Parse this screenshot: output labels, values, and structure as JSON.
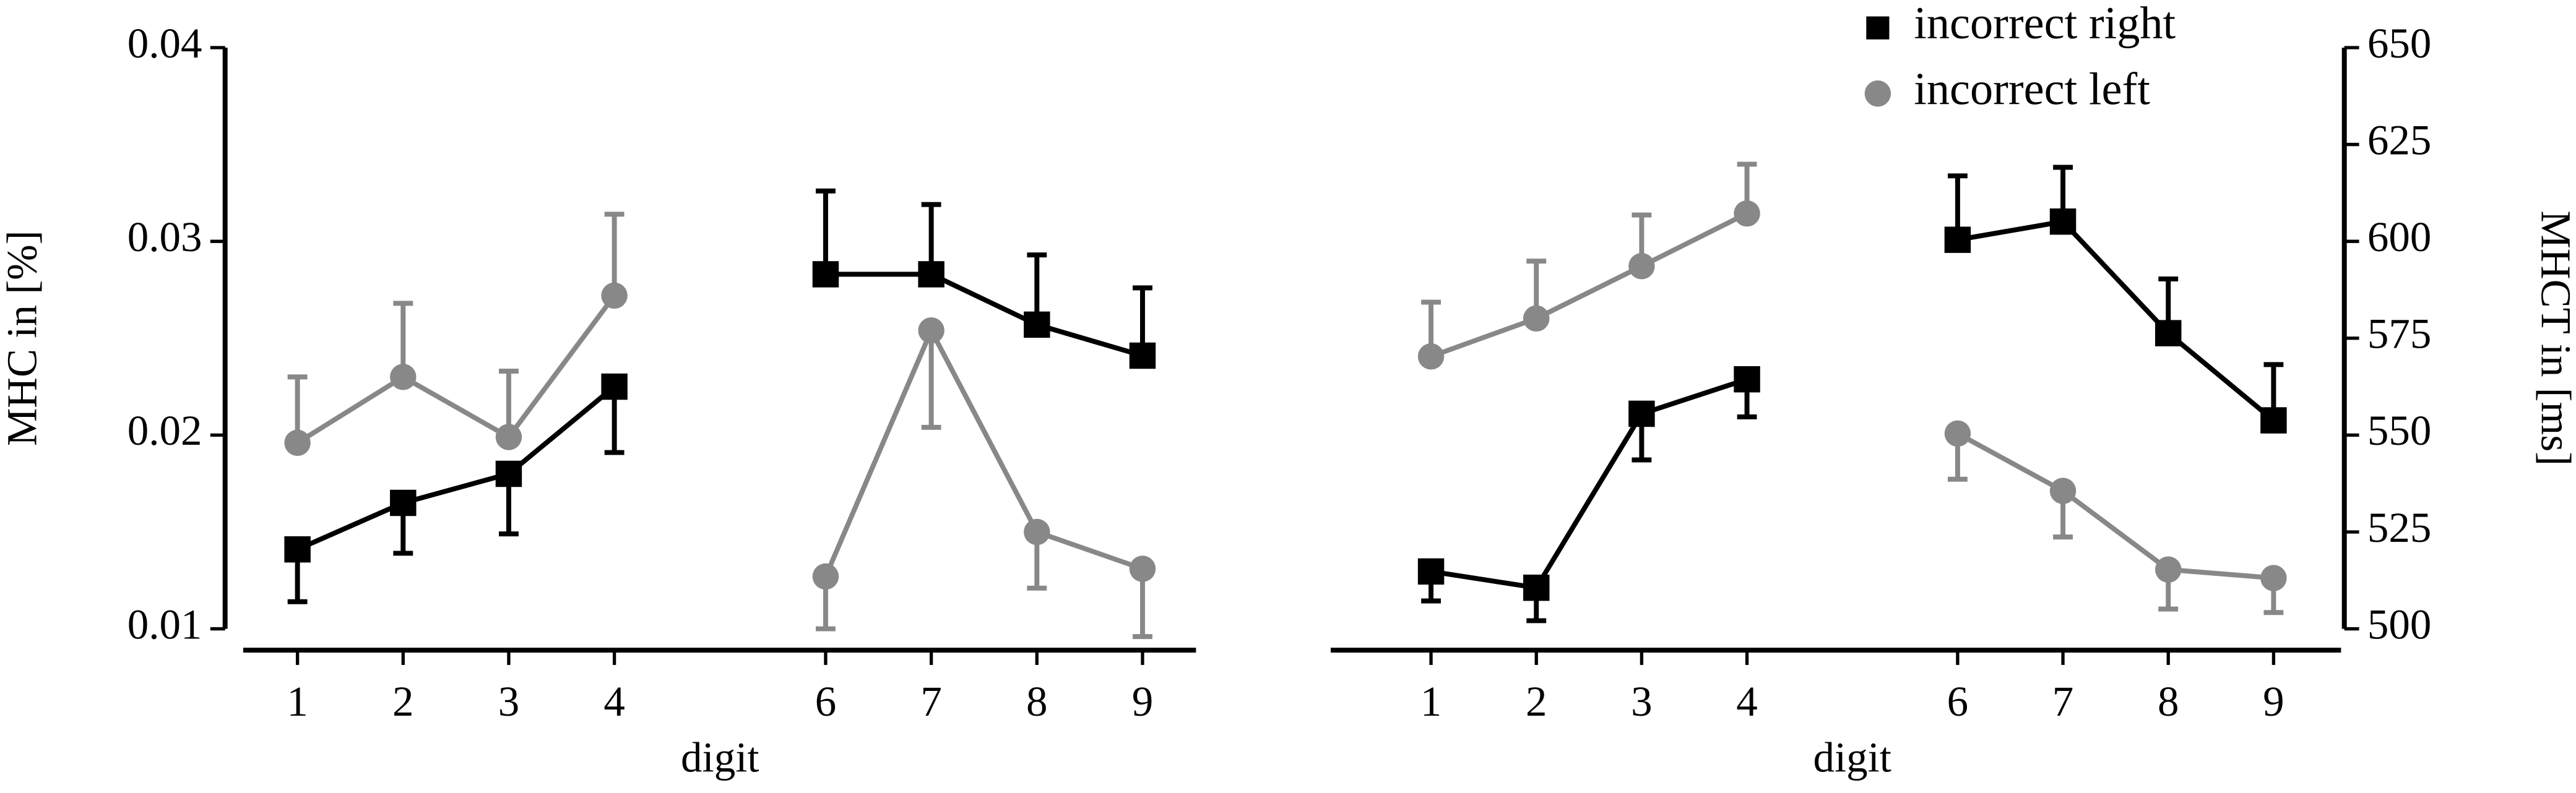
{
  "chart_data": [
    {
      "type": "line",
      "x": [
        1,
        2,
        3,
        4,
        5,
        6,
        7,
        8,
        9
      ],
      "xlim": [
        0.5,
        9.5
      ],
      "xticks": [
        1,
        2,
        3,
        4,
        6,
        7,
        8,
        9
      ],
      "ylim": [
        0.01,
        0.04
      ],
      "yticks": [
        0.01,
        0.02,
        0.03,
        0.04
      ],
      "xlabel": "digit",
      "ylabel": "MHC in [%]",
      "y_axis_side": "left",
      "series": [
        {
          "color": "#000000",
          "marker": "square",
          "values": [
            0.0141,
            0.0165,
            0.018,
            0.0225,
            null,
            0.0283,
            0.0283,
            0.0257,
            0.0241
          ],
          "errors": [
            0.0027,
            0.0026,
            0.0031,
            0.0034,
            null,
            0.0043,
            0.0036,
            0.0036,
            0.0035
          ]
        },
        {
          "color": "#888888",
          "marker": "circle",
          "values": [
            0.0196,
            0.023,
            0.0199,
            0.0272,
            null,
            0.0127,
            0.0254,
            0.015,
            0.0131
          ],
          "errors": [
            0.0034,
            0.0038,
            0.0034,
            0.0042,
            null,
            0.0027,
            0.005,
            0.0029,
            0.0035
          ]
        }
      ]
    },
    {
      "type": "line",
      "x": [
        1,
        2,
        3,
        4,
        5,
        6,
        7,
        8,
        9
      ],
      "xlim": [
        0.5,
        9.5
      ],
      "xticks": [
        1,
        2,
        3,
        4,
        6,
        7,
        8,
        9
      ],
      "ylim": [
        500,
        650
      ],
      "yticks": [
        500,
        525,
        550,
        575,
        600,
        625,
        650
      ],
      "xlabel": "digit",
      "ylabel": "MHCT in [ms]",
      "y_axis_side": "right",
      "legend": "upper right",
      "series": [
        {
          "name": "incorrect right",
          "color": "#000000",
          "marker": "square",
          "values": [
            514.8,
            510.6,
            555.5,
            564.4,
            null,
            600.4,
            605.1,
            576.3,
            553.8
          ],
          "errors": [
            7.6,
            8.5,
            11.9,
            9.7,
            null,
            16.5,
            14.0,
            14.0,
            14.4
          ]
        },
        {
          "name": "incorrect left",
          "color": "#888888",
          "marker": "circle",
          "values": [
            570.3,
            580.1,
            593.6,
            607.2,
            null,
            550.4,
            535.6,
            515.3,
            513.1
          ],
          "errors": [
            14.0,
            14.8,
            13.2,
            12.7,
            null,
            11.8,
            11.9,
            10.2,
            8.9
          ]
        }
      ]
    }
  ]
}
